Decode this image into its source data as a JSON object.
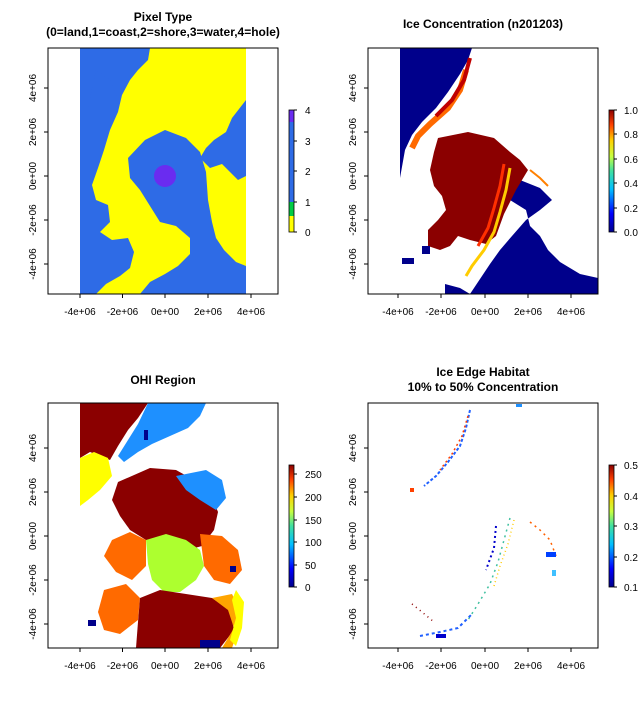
{
  "chart_data": [
    {
      "type": "heatmap",
      "title": "Pixel Type",
      "subtitle": "(0=land,1=coast,2=shore,3=water,4=hole)",
      "x_ticks": [
        "-4e+06",
        "-2e+06",
        "0e+00",
        "2e+06",
        "4e+06"
      ],
      "y_ticks": [
        "-4e+06",
        "-2e+06",
        "0e+00",
        "2e+06",
        "4e+06"
      ],
      "xlim": [
        -5300000.0,
        5300000.0
      ],
      "ylim": [
        -5400000.0,
        5900000.0
      ],
      "extent": {
        "x": [
          -3850000.0,
          3750000.0
        ],
        "y": [
          -5350000.0,
          5850000.0
        ]
      },
      "colorbar": {
        "ticks": [
          "0",
          "1",
          "2",
          "3",
          "4"
        ],
        "range": [
          0,
          4
        ]
      },
      "colors": {
        "land": "#ffff00",
        "water": "#2e6be6",
        "hole": "#6a2cf0"
      }
    },
    {
      "type": "heatmap",
      "title": "Ice Concentration (n201203)",
      "x_ticks": [
        "-4e+06",
        "-2e+06",
        "0e+00",
        "2e+06",
        "4e+06"
      ],
      "y_ticks": [
        "-4e+06",
        "-2e+06",
        "0e+00",
        "2e+06",
        "4e+06"
      ],
      "xlim": [
        -5300000.0,
        5300000.0
      ],
      "ylim": [
        -5400000.0,
        5900000.0
      ],
      "colorbar": {
        "ticks": [
          "0.0",
          "0.2",
          "0.4",
          "0.6",
          "0.8",
          "1.0"
        ],
        "range": [
          0,
          1
        ]
      },
      "colors": {
        "open_water": "#00008b",
        "ice": "#8b0000"
      }
    },
    {
      "type": "heatmap",
      "title": "OHI Region",
      "x_ticks": [
        "-4e+06",
        "-2e+06",
        "0e+00",
        "2e+06",
        "4e+06"
      ],
      "y_ticks": [
        "-4e+06",
        "-2e+06",
        "0e+00",
        "2e+06",
        "4e+06"
      ],
      "xlim": [
        -5300000.0,
        5300000.0
      ],
      "ylim": [
        -5400000.0,
        5900000.0
      ],
      "colorbar": {
        "ticks": [
          "0",
          "50",
          "100",
          "150",
          "200",
          "250"
        ],
        "range": [
          0,
          270
        ]
      }
    },
    {
      "type": "heatmap",
      "title": "Ice Edge Habitat",
      "subtitle": "10% to 50% Concentration",
      "x_ticks": [
        "-4e+06",
        "-2e+06",
        "0e+00",
        "2e+06",
        "4e+06"
      ],
      "y_ticks": [
        "-4e+06",
        "-2e+06",
        "0e+00",
        "2e+06",
        "4e+06"
      ],
      "xlim": [
        -5300000.0,
        5300000.0
      ],
      "ylim": [
        -5400000.0,
        5900000.0
      ],
      "colorbar": {
        "ticks": [
          "0.1",
          "0.2",
          "0.3",
          "0.4",
          "0.5"
        ],
        "range": [
          0.08,
          0.5
        ]
      }
    }
  ]
}
